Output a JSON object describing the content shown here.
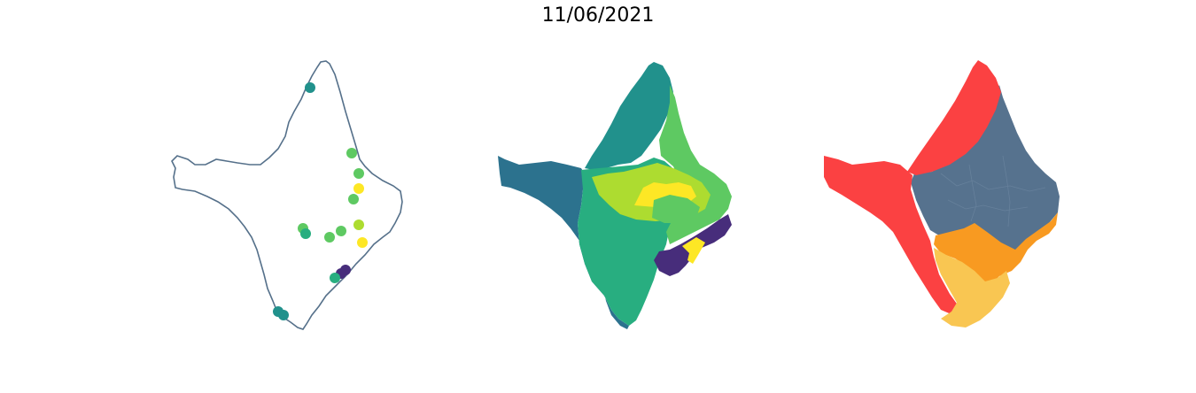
{
  "title": "11/06/2021",
  "colors": {
    "outline": "#55708a",
    "viridis": [
      "#440154",
      "#472d7b",
      "#3b528b",
      "#2c728e",
      "#21918c",
      "#28ae80",
      "#5ec962",
      "#addc30",
      "#fde725"
    ],
    "class_red": "#fb4142",
    "class_slate": "#56728e",
    "class_orange": "#f89a21",
    "class_yellow": "#f9c652"
  },
  "maps": [
    {
      "name": "station-points-map",
      "style": "points on outline"
    },
    {
      "name": "interpolated-surface-map",
      "style": "viridis filled regions"
    },
    {
      "name": "classified-zones-map",
      "style": "four-class categorical zones"
    }
  ]
}
